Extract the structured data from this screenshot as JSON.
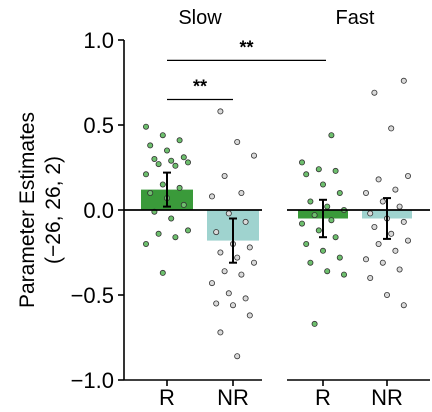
{
  "chart_data": {
    "type": "bar",
    "ylabel_line1": "Parameter Estimates",
    "ylabel_line2": "(−26, 26, 2)",
    "ylim": [
      -1.0,
      1.0
    ],
    "yticks": [
      "1.0",
      "0.5",
      "0.0",
      "−0.5",
      "−1.0"
    ],
    "ytick_values": [
      1.0,
      0.5,
      0.0,
      -0.5,
      -1.0
    ],
    "colors": {
      "R": "#3a9a3a",
      "NR": "#9fd3cf",
      "R_point": "#6dbf6d",
      "NR_point": "#d9d9d9"
    },
    "panels": [
      {
        "title": "Slow",
        "categories": [
          "R",
          "NR"
        ],
        "values": [
          0.12,
          -0.18
        ],
        "errors": [
          0.1,
          0.13
        ],
        "points": [
          [
            0.49,
            0.44,
            0.41,
            0.38,
            0.35,
            0.31,
            0.3,
            0.29,
            0.28,
            0.27,
            0.26,
            0.21,
            0.15,
            0.13,
            0.1,
            0.07,
            0.03,
            -0.01,
            -0.05,
            -0.12,
            -0.14,
            -0.16,
            -0.2,
            -0.37
          ],
          [
            0.58,
            0.4,
            0.32,
            0.2,
            0.1,
            0.08,
            -0.02,
            -0.07,
            -0.13,
            -0.2,
            -0.22,
            -0.25,
            -0.28,
            -0.31,
            -0.36,
            -0.38,
            -0.43,
            -0.49,
            -0.52,
            -0.55,
            -0.56,
            -0.62,
            -0.72,
            -0.86
          ]
        ]
      },
      {
        "title": "Fast",
        "categories": [
          "R",
          "NR"
        ],
        "values": [
          -0.05,
          -0.05
        ],
        "errors": [
          0.11,
          0.12
        ],
        "points": [
          [
            0.44,
            0.28,
            0.24,
            0.23,
            0.21,
            0.15,
            0.1,
            0.05,
            0.02,
            0.0,
            -0.03,
            -0.06,
            -0.08,
            -0.12,
            -0.16,
            -0.2,
            -0.24,
            -0.28,
            -0.31,
            -0.36,
            -0.38,
            -0.67
          ],
          [
            0.76,
            0.69,
            0.48,
            0.2,
            0.18,
            0.12,
            0.1,
            0.05,
            0.02,
            -0.02,
            -0.05,
            -0.07,
            -0.1,
            -0.14,
            -0.18,
            -0.2,
            -0.24,
            -0.29,
            -0.31,
            -0.35,
            -0.4,
            -0.5,
            -0.56
          ]
        ]
      }
    ],
    "significance": [
      {
        "label": "**",
        "y": 0.88
      },
      {
        "label": "**",
        "y": 0.65
      }
    ]
  }
}
